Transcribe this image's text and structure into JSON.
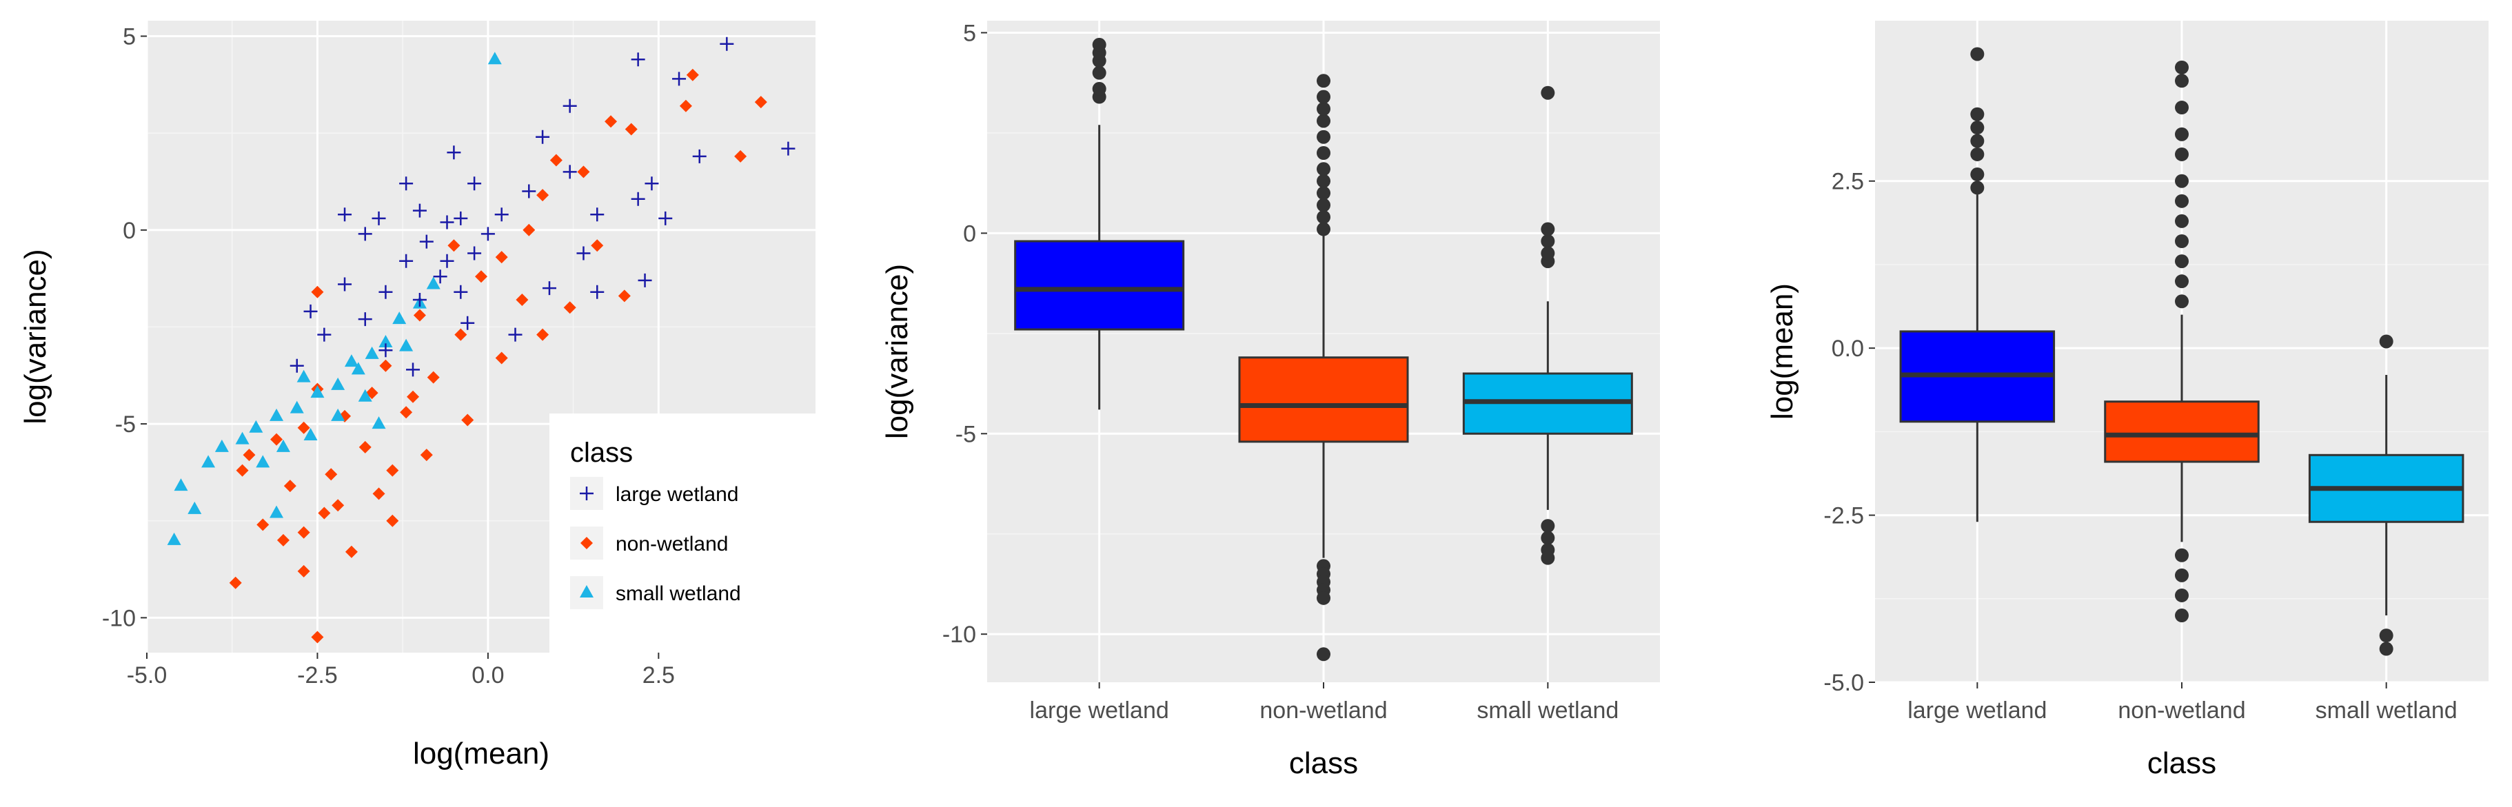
{
  "chart_data": [
    {
      "type": "scatter",
      "xlabel": "log(mean)",
      "ylabel": "log(variance)",
      "xlim": [
        -5.0,
        4.8
      ],
      "ylim": [
        -10.9,
        5.4
      ],
      "xticks": [
        -5.0,
        -2.5,
        0.0,
        2.5
      ],
      "xtick_labels": [
        "-5.0",
        "-2.5",
        "0.0",
        "2.5"
      ],
      "yticks": [
        5,
        0,
        -5,
        -10
      ],
      "ytick_labels": [
        "5",
        "0",
        "-5",
        "-10"
      ],
      "legend": {
        "title": "class",
        "position": "bottom-right inside",
        "entries": [
          {
            "label": "large wetland",
            "shape": "plus",
            "color": "#1a1aa6"
          },
          {
            "label": "non-wetland",
            "shape": "diamond",
            "color": "#ff4000"
          },
          {
            "label": "small wetland",
            "shape": "triangle",
            "color": "#1eb4e6"
          }
        ]
      },
      "series": [
        {
          "name": "large wetland",
          "shape": "plus",
          "color": "#1a1aa6",
          "points": [
            [
              3.5,
              4.8
            ],
            [
              2.2,
              4.4
            ],
            [
              2.8,
              3.9
            ],
            [
              4.4,
              2.1
            ],
            [
              3.1,
              1.9
            ],
            [
              1.2,
              3.2
            ],
            [
              0.8,
              2.4
            ],
            [
              2.4,
              1.2
            ],
            [
              2.2,
              0.8
            ],
            [
              1.4,
              -0.6
            ],
            [
              1.6,
              0.4
            ],
            [
              2.6,
              0.3
            ],
            [
              0.6,
              1.0
            ],
            [
              -0.5,
              2.0
            ],
            [
              -0.2,
              1.2
            ],
            [
              0.2,
              0.4
            ],
            [
              -0.4,
              0.3
            ],
            [
              -1.0,
              0.5
            ],
            [
              -0.6,
              0.2
            ],
            [
              -1.6,
              0.3
            ],
            [
              -2.1,
              0.4
            ],
            [
              -1.8,
              -0.1
            ],
            [
              -0.9,
              -0.3
            ],
            [
              -0.2,
              -0.6
            ],
            [
              -1.2,
              -0.8
            ],
            [
              -0.7,
              -1.2
            ],
            [
              -1.5,
              -1.6
            ],
            [
              -2.1,
              -1.4
            ],
            [
              -2.6,
              -2.1
            ],
            [
              -1.0,
              -1.8
            ],
            [
              -0.4,
              -1.6
            ],
            [
              -2.4,
              -2.7
            ],
            [
              -1.8,
              -2.3
            ],
            [
              -1.5,
              -3.1
            ],
            [
              -2.8,
              -3.5
            ],
            [
              0.9,
              -1.5
            ],
            [
              1.6,
              -1.6
            ],
            [
              2.3,
              -1.3
            ],
            [
              0.4,
              -2.7
            ],
            [
              -0.3,
              -2.4
            ],
            [
              -1.1,
              -3.6
            ],
            [
              1.2,
              1.5
            ],
            [
              0.0,
              -0.1
            ],
            [
              -1.2,
              1.2
            ],
            [
              -0.6,
              -0.8
            ]
          ]
        },
        {
          "name": "non-wetland",
          "shape": "diamond",
          "color": "#ff4000",
          "points": [
            [
              3.0,
              4.0
            ],
            [
              4.0,
              3.3
            ],
            [
              2.9,
              3.2
            ],
            [
              3.7,
              1.9
            ],
            [
              1.8,
              2.8
            ],
            [
              2.1,
              2.6
            ],
            [
              1.0,
              1.8
            ],
            [
              1.4,
              1.5
            ],
            [
              0.8,
              0.9
            ],
            [
              1.6,
              -0.4
            ],
            [
              0.6,
              0.0
            ],
            [
              0.2,
              -0.7
            ],
            [
              -0.5,
              -0.4
            ],
            [
              -0.1,
              -1.2
            ],
            [
              -1.0,
              -2.2
            ],
            [
              -0.4,
              -2.7
            ],
            [
              -1.5,
              -3.5
            ],
            [
              -0.8,
              -3.8
            ],
            [
              -2.1,
              -4.8
            ],
            [
              -1.2,
              -4.7
            ],
            [
              -1.8,
              -5.6
            ],
            [
              -1.4,
              -6.2
            ],
            [
              -2.3,
              -6.3
            ],
            [
              -0.9,
              -5.8
            ],
            [
              -1.6,
              -6.8
            ],
            [
              -2.4,
              -7.3
            ],
            [
              -2.7,
              -7.8
            ],
            [
              -3.0,
              -8.0
            ],
            [
              -2.0,
              -8.3
            ],
            [
              -2.7,
              -8.8
            ],
            [
              -3.7,
              -9.1
            ],
            [
              -2.5,
              -10.5
            ],
            [
              -3.3,
              -7.6
            ],
            [
              -3.6,
              -6.2
            ],
            [
              -3.1,
              -5.4
            ],
            [
              -2.7,
              -5.1
            ],
            [
              -0.3,
              -4.9
            ],
            [
              -1.1,
              -4.3
            ],
            [
              0.2,
              -3.3
            ],
            [
              0.8,
              -2.7
            ],
            [
              1.2,
              -2.0
            ],
            [
              2.0,
              -1.7
            ],
            [
              -3.5,
              -5.8
            ],
            [
              -2.9,
              -6.6
            ],
            [
              -2.2,
              -7.1
            ],
            [
              -1.4,
              -7.5
            ],
            [
              -2.5,
              -4.1
            ],
            [
              -1.7,
              -4.2
            ],
            [
              0.5,
              -1.8
            ],
            [
              -2.5,
              -1.6
            ]
          ]
        },
        {
          "name": "small wetland",
          "shape": "triangle",
          "color": "#1eb4e6",
          "points": [
            [
              0.1,
              4.4
            ],
            [
              -4.6,
              -8.0
            ],
            [
              -4.3,
              -7.2
            ],
            [
              -4.5,
              -6.6
            ],
            [
              -4.1,
              -6.0
            ],
            [
              -3.9,
              -5.6
            ],
            [
              -3.6,
              -5.4
            ],
            [
              -3.4,
              -5.1
            ],
            [
              -3.1,
              -4.8
            ],
            [
              -2.8,
              -4.6
            ],
            [
              -2.5,
              -4.2
            ],
            [
              -2.2,
              -4.0
            ],
            [
              -1.9,
              -3.6
            ],
            [
              -1.7,
              -3.2
            ],
            [
              -1.5,
              -2.9
            ],
            [
              -1.3,
              -2.3
            ],
            [
              -1.0,
              -1.9
            ],
            [
              -0.8,
              -1.4
            ],
            [
              -3.0,
              -5.6
            ],
            [
              -3.3,
              -6.0
            ],
            [
              -2.6,
              -5.3
            ],
            [
              -2.2,
              -4.8
            ],
            [
              -1.8,
              -4.3
            ],
            [
              -3.1,
              -7.3
            ],
            [
              -1.6,
              -5.0
            ],
            [
              -2.0,
              -3.4
            ],
            [
              -1.2,
              -3.0
            ],
            [
              -2.7,
              -3.8
            ]
          ]
        }
      ]
    },
    {
      "type": "boxplot",
      "xlabel": "class",
      "ylabel": "log(variance)",
      "ylim": [
        -11.2,
        5.3
      ],
      "yticks": [
        5,
        0,
        -5,
        -10
      ],
      "ytick_labels": [
        "5",
        "0",
        "-5",
        "-10"
      ],
      "categories": [
        "large wetland",
        "non-wetland",
        "small wetland"
      ],
      "colors": [
        "#0000ff",
        "#ff4000",
        "#00b4eb"
      ],
      "boxes": [
        {
          "category": "large wetland",
          "whisker_low": -4.4,
          "q1": -2.4,
          "median": -1.4,
          "q3": -0.2,
          "whisker_high": 2.7,
          "outliers": [
            3.4,
            3.6,
            4.0,
            4.3,
            4.5,
            4.7
          ]
        },
        {
          "category": "non-wetland",
          "whisker_low": -8.1,
          "q1": -5.2,
          "median": -4.3,
          "q3": -3.1,
          "whisker_high": 0.0,
          "outliers": [
            0.1,
            0.4,
            0.7,
            1.0,
            1.3,
            1.6,
            2.0,
            2.4,
            2.8,
            3.1,
            3.4,
            3.8,
            -8.3,
            -8.5,
            -8.7,
            -8.9,
            -9.1,
            -10.5
          ]
        },
        {
          "category": "small wetland",
          "whisker_low": -6.9,
          "q1": -5.0,
          "median": -4.2,
          "q3": -3.5,
          "whisker_high": -1.7,
          "outliers": [
            -0.2,
            0.1,
            -0.7,
            -0.5,
            3.5,
            -7.3,
            -7.6,
            -7.9,
            -8.1
          ]
        }
      ]
    },
    {
      "type": "boxplot",
      "xlabel": "class",
      "ylabel": "log(mean)",
      "ylim": [
        -5.0,
        4.9
      ],
      "yticks": [
        2.5,
        0.0,
        -2.5,
        -5.0
      ],
      "ytick_labels": [
        "2.5",
        "0.0",
        "-2.5",
        "-5.0"
      ],
      "categories": [
        "large wetland",
        "non-wetland",
        "small wetland"
      ],
      "colors": [
        "#0000ff",
        "#ff4000",
        "#00b4eb"
      ],
      "boxes": [
        {
          "category": "large wetland",
          "whisker_low": -2.6,
          "q1": -1.1,
          "median": -0.4,
          "q3": 0.25,
          "whisker_high": 2.3,
          "outliers": [
            2.4,
            2.6,
            2.9,
            3.1,
            3.3,
            3.5,
            4.4
          ]
        },
        {
          "category": "non-wetland",
          "whisker_low": -2.9,
          "q1": -1.7,
          "median": -1.3,
          "q3": -0.8,
          "whisker_high": 0.5,
          "outliers": [
            0.7,
            1.0,
            1.3,
            1.6,
            1.9,
            2.2,
            2.5,
            2.9,
            3.2,
            3.6,
            4.0,
            4.2,
            -3.1,
            -3.4,
            -3.7,
            -4.0
          ]
        },
        {
          "category": "small wetland",
          "whisker_low": -4.0,
          "q1": -2.6,
          "median": -2.1,
          "q3": -1.6,
          "whisker_high": -0.4,
          "outliers": [
            0.1,
            -4.3,
            -4.5
          ]
        }
      ]
    }
  ]
}
